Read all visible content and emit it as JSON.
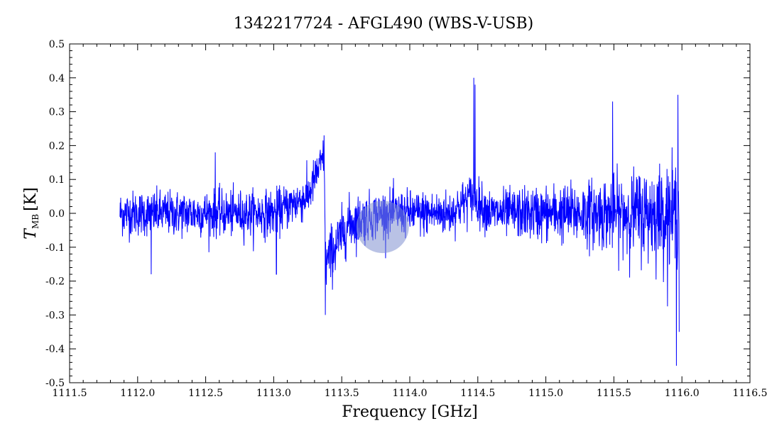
{
  "chart_data": {
    "type": "line",
    "title": "1342217724 - AFGL490 (WBS-V-USB)",
    "xlabel": "Frequency [GHz]",
    "ylabel_main": "T",
    "ylabel_sub": "MB",
    "ylabel_unit": "[K]",
    "xlim": [
      1111.5,
      1116.5
    ],
    "ylim": [
      -0.5,
      0.5
    ],
    "xticks": [
      "1111.5",
      "1112.0",
      "1112.5",
      "1113.0",
      "1113.5",
      "1114.0",
      "1114.5",
      "1115.0",
      "1115.5",
      "1116.0",
      "1116.5"
    ],
    "yticks": [
      "0.5",
      "0.4",
      "0.3",
      "0.2",
      "0.1",
      "0.0",
      "-0.1",
      "-0.2",
      "-0.3",
      "-0.4",
      "-0.5"
    ],
    "grid": false,
    "series": [
      {
        "color": "#0000ff",
        "x_range": [
          1111.87,
          1115.98
        ],
        "envelope": [
          {
            "x": 1111.87,
            "baseline": 0.0,
            "noise": 0.06
          },
          {
            "x": 1112.4,
            "baseline": 0.0,
            "noise": 0.06
          },
          {
            "x": 1113.0,
            "baseline": 0.0,
            "noise": 0.06
          },
          {
            "x": 1113.25,
            "baseline": 0.05,
            "noise": 0.06
          },
          {
            "x": 1113.37,
            "baseline": 0.17,
            "noise": 0.05
          },
          {
            "x": 1113.38,
            "baseline": -0.15,
            "noise": 0.08
          },
          {
            "x": 1113.55,
            "baseline": -0.03,
            "noise": 0.07
          },
          {
            "x": 1113.8,
            "baseline": 0.0,
            "noise": 0.06
          },
          {
            "x": 1114.3,
            "baseline": 0.0,
            "noise": 0.06
          },
          {
            "x": 1114.45,
            "baseline": 0.05,
            "noise": 0.06
          },
          {
            "x": 1114.6,
            "baseline": 0.0,
            "noise": 0.06
          },
          {
            "x": 1115.2,
            "baseline": 0.0,
            "noise": 0.08
          },
          {
            "x": 1115.5,
            "baseline": 0.0,
            "noise": 0.1
          },
          {
            "x": 1115.98,
            "baseline": 0.0,
            "noise": 0.14
          }
        ],
        "features": [
          {
            "x": 1113.37,
            "y": 0.23
          },
          {
            "x": 1113.38,
            "y": -0.3
          },
          {
            "x": 1114.47,
            "y": 0.4
          },
          {
            "x": 1114.48,
            "y": 0.38
          },
          {
            "x": 1115.49,
            "y": 0.33
          },
          {
            "x": 1115.96,
            "y": -0.45
          },
          {
            "x": 1115.97,
            "y": 0.35
          },
          {
            "x": 1115.98,
            "y": -0.35
          },
          {
            "x": 1112.57,
            "y": 0.18
          },
          {
            "x": 1113.02,
            "y": -0.18
          },
          {
            "x": 1112.1,
            "y": -0.18
          }
        ]
      }
    ],
    "marker": {
      "x": 1113.8,
      "y": -0.04,
      "color": "#8090d0",
      "opacity": 0.55
    }
  }
}
